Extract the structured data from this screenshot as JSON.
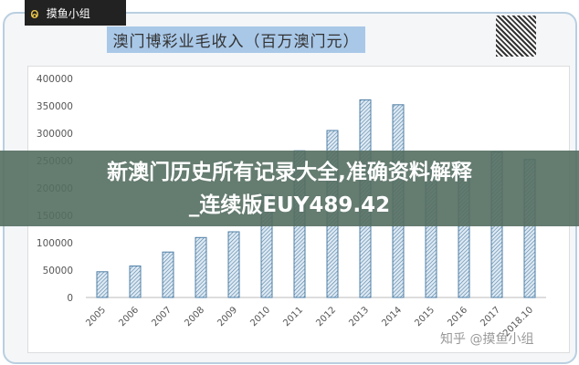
{
  "logo": {
    "text": "摸鱼小组"
  },
  "chart_data": {
    "type": "bar",
    "title": "澳门博彩业毛收入（百万澳门元）",
    "categories": [
      "2005",
      "2006",
      "2007",
      "2008",
      "2009",
      "2010",
      "2011",
      "2012",
      "2013",
      "2014",
      "2015",
      "2016",
      "2017",
      "2018.10"
    ],
    "values": [
      47000,
      57500,
      83000,
      109500,
      120000,
      188000,
      268000,
      305000,
      361000,
      352000,
      231000,
      224000,
      266000,
      252000
    ],
    "yticks": [
      0,
      50000,
      100000,
      150000,
      200000,
      250000,
      300000,
      350000,
      400000
    ],
    "ylim": [
      0,
      400000
    ],
    "grid": false,
    "bar_color": "#4f7fa6",
    "bar_fill": "hatched"
  },
  "overlay": {
    "line1": "新澳门历史所有记录大全,准确资料解释",
    "line2": "_连续版EUY489.42"
  },
  "watermark": "知乎 @摸鱼小组"
}
